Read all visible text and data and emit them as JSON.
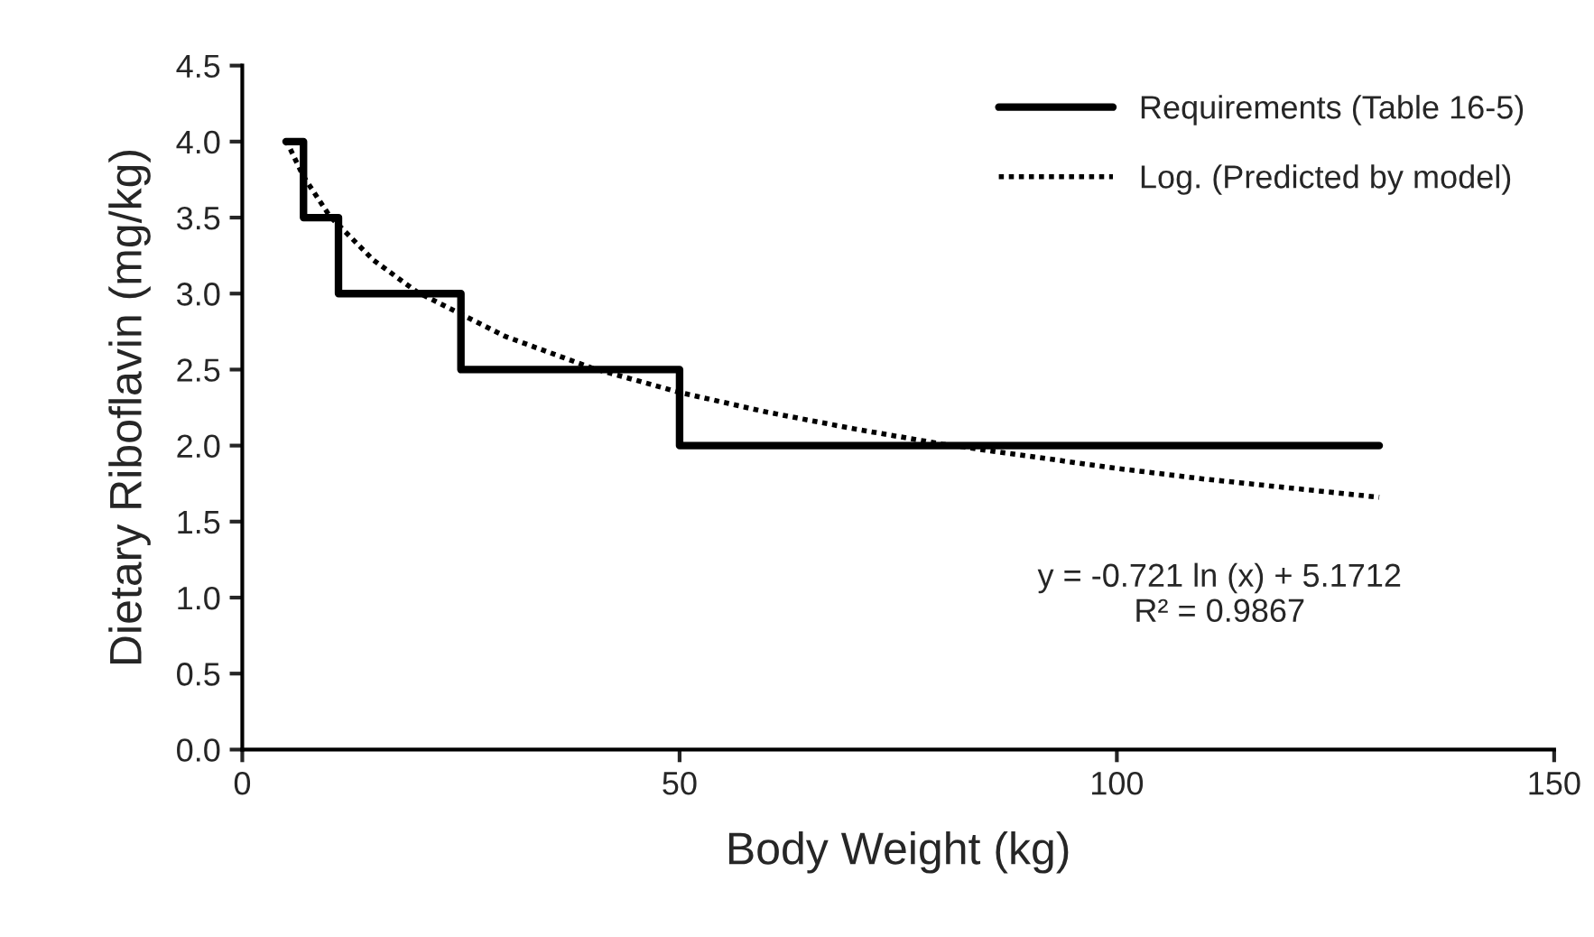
{
  "chart_data": {
    "type": "line",
    "xlabel": "Body Weight (kg)",
    "ylabel": "Dietary Riboflavin (mg/kg)",
    "xlim": [
      0,
      150
    ],
    "xticks": [
      0,
      50,
      100,
      150
    ],
    "ylim": [
      0,
      4.5
    ],
    "yticks": [
      {
        "value": 0,
        "label": "0.0"
      },
      {
        "value": 0.5,
        "label": "0.5"
      },
      {
        "value": 1,
        "label": "1.0"
      },
      {
        "value": 1.5,
        "label": "1.5"
      },
      {
        "value": 2,
        "label": "2.0"
      },
      {
        "value": 2.5,
        "label": "2.5"
      },
      {
        "value": 3,
        "label": "3.0"
      },
      {
        "value": 3.5,
        "label": "3.5"
      },
      {
        "value": 4,
        "label": "4.0"
      },
      {
        "value": 4.5,
        "label": "4.5"
      }
    ],
    "grid": false,
    "legend": "top right",
    "series": [
      {
        "name": "Requirements (Table 16-5)",
        "type": "step",
        "color": "#000000",
        "line_style": "solid",
        "x": [
          5,
          7,
          11,
          25,
          50,
          130
        ],
        "values": [
          4.0,
          3.5,
          3.0,
          2.5,
          2.0,
          2.0
        ]
      },
      {
        "name": "Log. (Predicted by model)",
        "color": "#000000",
        "line_style": "dotted",
        "x": [
          5,
          7,
          10,
          15,
          20,
          30,
          40,
          50,
          60,
          70,
          80,
          90,
          100,
          110,
          120,
          130
        ],
        "values": [
          4.01,
          3.77,
          3.51,
          3.22,
          3.01,
          2.72,
          2.51,
          2.35,
          2.22,
          2.11,
          2.01,
          1.93,
          1.85,
          1.78,
          1.72,
          1.66
        ]
      }
    ],
    "annotations": [
      "y = -0.721 ln (x) + 5.1712\nR² = 0.9867"
    ]
  }
}
